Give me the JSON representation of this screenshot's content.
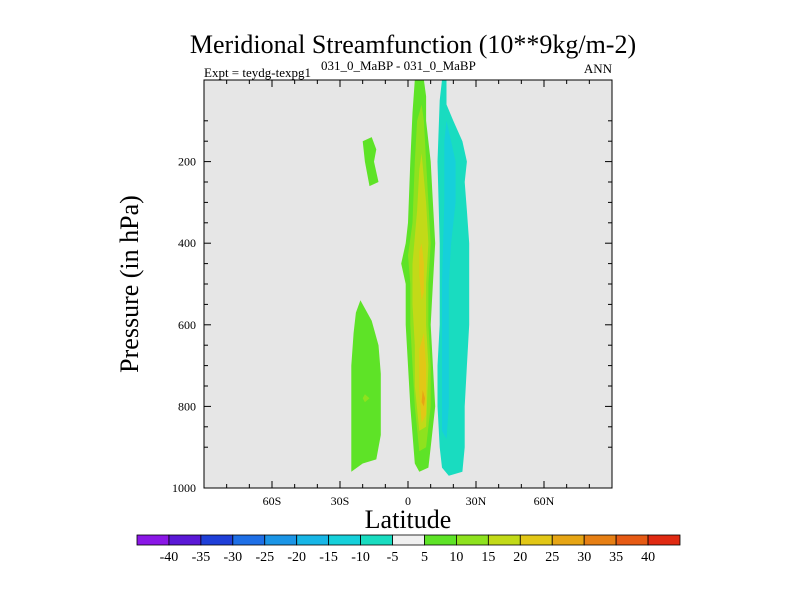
{
  "chart_data": {
    "type": "contour",
    "title": "Meridional Streamfunction (10**9kg/m-2)",
    "subtitle_left": "Expt = teydg-texpg1",
    "subtitle_center": "031_0_MaBP - 031_0_MaBP",
    "subtitle_right": "ANN",
    "xlabel": "Latitude",
    "ylabel": "Pressure (in hPa)",
    "xlim": [
      -90,
      90
    ],
    "ylim": [
      1000,
      0
    ],
    "x_ticks": [
      {
        "value": -60,
        "label": "60S"
      },
      {
        "value": -30,
        "label": "30S"
      },
      {
        "value": 0,
        "label": "0"
      },
      {
        "value": 30,
        "label": "30N"
      },
      {
        "value": 60,
        "label": "60N"
      }
    ],
    "y_ticks": [
      {
        "value": 200,
        "label": "200"
      },
      {
        "value": 400,
        "label": "400"
      },
      {
        "value": 600,
        "label": "600"
      },
      {
        "value": 800,
        "label": "800"
      },
      {
        "value": 1000,
        "label": "1000"
      }
    ],
    "plot_background": "#e6e6e6",
    "colorbar": {
      "labels": [
        "-40",
        "-35",
        "-30",
        "-25",
        "-20",
        "-15",
        "-10",
        "-5",
        "5",
        "10",
        "15",
        "20",
        "25",
        "30",
        "35",
        "40"
      ],
      "colors": [
        "#8a17e6",
        "#5a18d6",
        "#1f3fd8",
        "#1e6fe6",
        "#1b95e6",
        "#17b6e6",
        "#16d0da",
        "#19dcc0",
        "#f0f0f0",
        "#5ee327",
        "#8ee21e",
        "#c2da18",
        "#e2c716",
        "#e6a514",
        "#e67f14",
        "#e65a14",
        "#e02a12"
      ]
    },
    "regions": [
      {
        "name": "sh-upper-cell",
        "level": "5 to 10",
        "color": "#5ee327",
        "points": [
          [
            -16,
            140
          ],
          [
            -14,
            170
          ],
          [
            -15,
            200
          ],
          [
            -13,
            250
          ],
          [
            -17,
            260
          ],
          [
            -19,
            200
          ],
          [
            -20,
            150
          ]
        ]
      },
      {
        "name": "sh-lower-cell",
        "level": "5 to 10",
        "color": "#5ee327",
        "points": [
          [
            -21,
            540
          ],
          [
            -16,
            590
          ],
          [
            -13,
            650
          ],
          [
            -12,
            720
          ],
          [
            -12,
            800
          ],
          [
            -12,
            870
          ],
          [
            -14,
            930
          ],
          [
            -20,
            940
          ],
          [
            -25,
            960
          ],
          [
            -25,
            900
          ],
          [
            -25,
            800
          ],
          [
            -25,
            700
          ],
          [
            -24,
            620
          ],
          [
            -23,
            570
          ]
        ]
      },
      {
        "name": "sh-lower-cell-core",
        "level": "10 to 15",
        "color": "#8ee21e",
        "points": [
          [
            -19,
            770
          ],
          [
            -17,
            780
          ],
          [
            -19,
            790
          ],
          [
            -20,
            780
          ]
        ]
      },
      {
        "name": "tropical-cell",
        "level": "5 to 10",
        "color": "#5ee327",
        "points": [
          [
            7,
            0
          ],
          [
            8,
            40
          ],
          [
            8,
            100
          ],
          [
            10,
            200
          ],
          [
            11,
            300
          ],
          [
            12,
            400
          ],
          [
            11,
            500
          ],
          [
            10,
            600
          ],
          [
            11,
            700
          ],
          [
            12,
            800
          ],
          [
            10,
            900
          ],
          [
            9,
            950
          ],
          [
            5,
            960
          ],
          [
            3,
            940
          ],
          [
            1,
            800
          ],
          [
            0,
            700
          ],
          [
            -1,
            600
          ],
          [
            -1,
            500
          ],
          [
            -3,
            450
          ],
          [
            -1,
            400
          ],
          [
            0,
            350
          ],
          [
            1,
            200
          ],
          [
            2,
            80
          ],
          [
            3,
            0
          ]
        ]
      },
      {
        "name": "tropical-cell-mid",
        "level": "10 to 15",
        "color": "#8ee21e",
        "points": [
          [
            6,
            60
          ],
          [
            7,
            100
          ],
          [
            8,
            200
          ],
          [
            9,
            300
          ],
          [
            10,
            400
          ],
          [
            9,
            500
          ],
          [
            9,
            600
          ],
          [
            10,
            700
          ],
          [
            10,
            800
          ],
          [
            8,
            900
          ],
          [
            5,
            910
          ],
          [
            3,
            800
          ],
          [
            2,
            700
          ],
          [
            1,
            600
          ],
          [
            1,
            500
          ],
          [
            0,
            430
          ],
          [
            2,
            350
          ],
          [
            3,
            200
          ],
          [
            4,
            100
          ]
        ]
      },
      {
        "name": "tropical-cell-inner",
        "level": "15 to 20",
        "color": "#c2da18",
        "points": [
          [
            6,
            180
          ],
          [
            8,
            300
          ],
          [
            9,
            400
          ],
          [
            8,
            500
          ],
          [
            8,
            600
          ],
          [
            9,
            700
          ],
          [
            8,
            850
          ],
          [
            5,
            860
          ],
          [
            3,
            750
          ],
          [
            3,
            650
          ],
          [
            2,
            550
          ],
          [
            2,
            450
          ],
          [
            4,
            320
          ],
          [
            5,
            220
          ]
        ]
      },
      {
        "name": "tropical-cell-core",
        "level": "20 to 25",
        "color": "#e2c716",
        "points": [
          [
            6,
            400
          ],
          [
            7,
            450
          ],
          [
            7,
            520
          ],
          [
            6,
            540
          ],
          [
            5,
            480
          ],
          [
            5,
            420
          ]
        ]
      },
      {
        "name": "tropical-cell-core-lower",
        "level": "20 to 25",
        "color": "#e2c716",
        "points": [
          [
            7,
            620
          ],
          [
            8,
            700
          ],
          [
            8,
            820
          ],
          [
            6,
            840
          ],
          [
            5,
            760
          ],
          [
            5,
            660
          ]
        ]
      },
      {
        "name": "tropical-cell-peak",
        "level": "25 to 30",
        "color": "#e6a514",
        "points": [
          [
            6.5,
            760
          ],
          [
            7.5,
            780
          ],
          [
            7,
            800
          ],
          [
            6,
            790
          ]
        ]
      },
      {
        "name": "nh-negative-cell",
        "level": "-10 to -5",
        "color": "#19dcc0",
        "points": [
          [
            17,
            0
          ],
          [
            17,
            60
          ],
          [
            20,
            100
          ],
          [
            24,
            150
          ],
          [
            26,
            200
          ],
          [
            25,
            250
          ],
          [
            26,
            320
          ],
          [
            27,
            400
          ],
          [
            27,
            500
          ],
          [
            27,
            600
          ],
          [
            26,
            700
          ],
          [
            25,
            800
          ],
          [
            25,
            900
          ],
          [
            24,
            960
          ],
          [
            18,
            970
          ],
          [
            15,
            950
          ],
          [
            14,
            900
          ],
          [
            13,
            800
          ],
          [
            13,
            700
          ],
          [
            14,
            600
          ],
          [
            14,
            400
          ],
          [
            13,
            200
          ],
          [
            14,
            50
          ],
          [
            15,
            0
          ]
        ]
      },
      {
        "name": "nh-negative-core",
        "level": "-15 to -10",
        "color": "#16d0da",
        "points": [
          [
            17,
            100
          ],
          [
            19,
            150
          ],
          [
            21,
            200
          ],
          [
            21,
            300
          ],
          [
            19,
            400
          ],
          [
            18,
            500
          ],
          [
            18,
            600
          ],
          [
            18,
            700
          ],
          [
            18,
            800
          ],
          [
            17,
            880
          ],
          [
            15,
            860
          ],
          [
            15,
            700
          ],
          [
            15,
            500
          ],
          [
            16,
            300
          ],
          [
            16,
            150
          ]
        ]
      }
    ]
  }
}
